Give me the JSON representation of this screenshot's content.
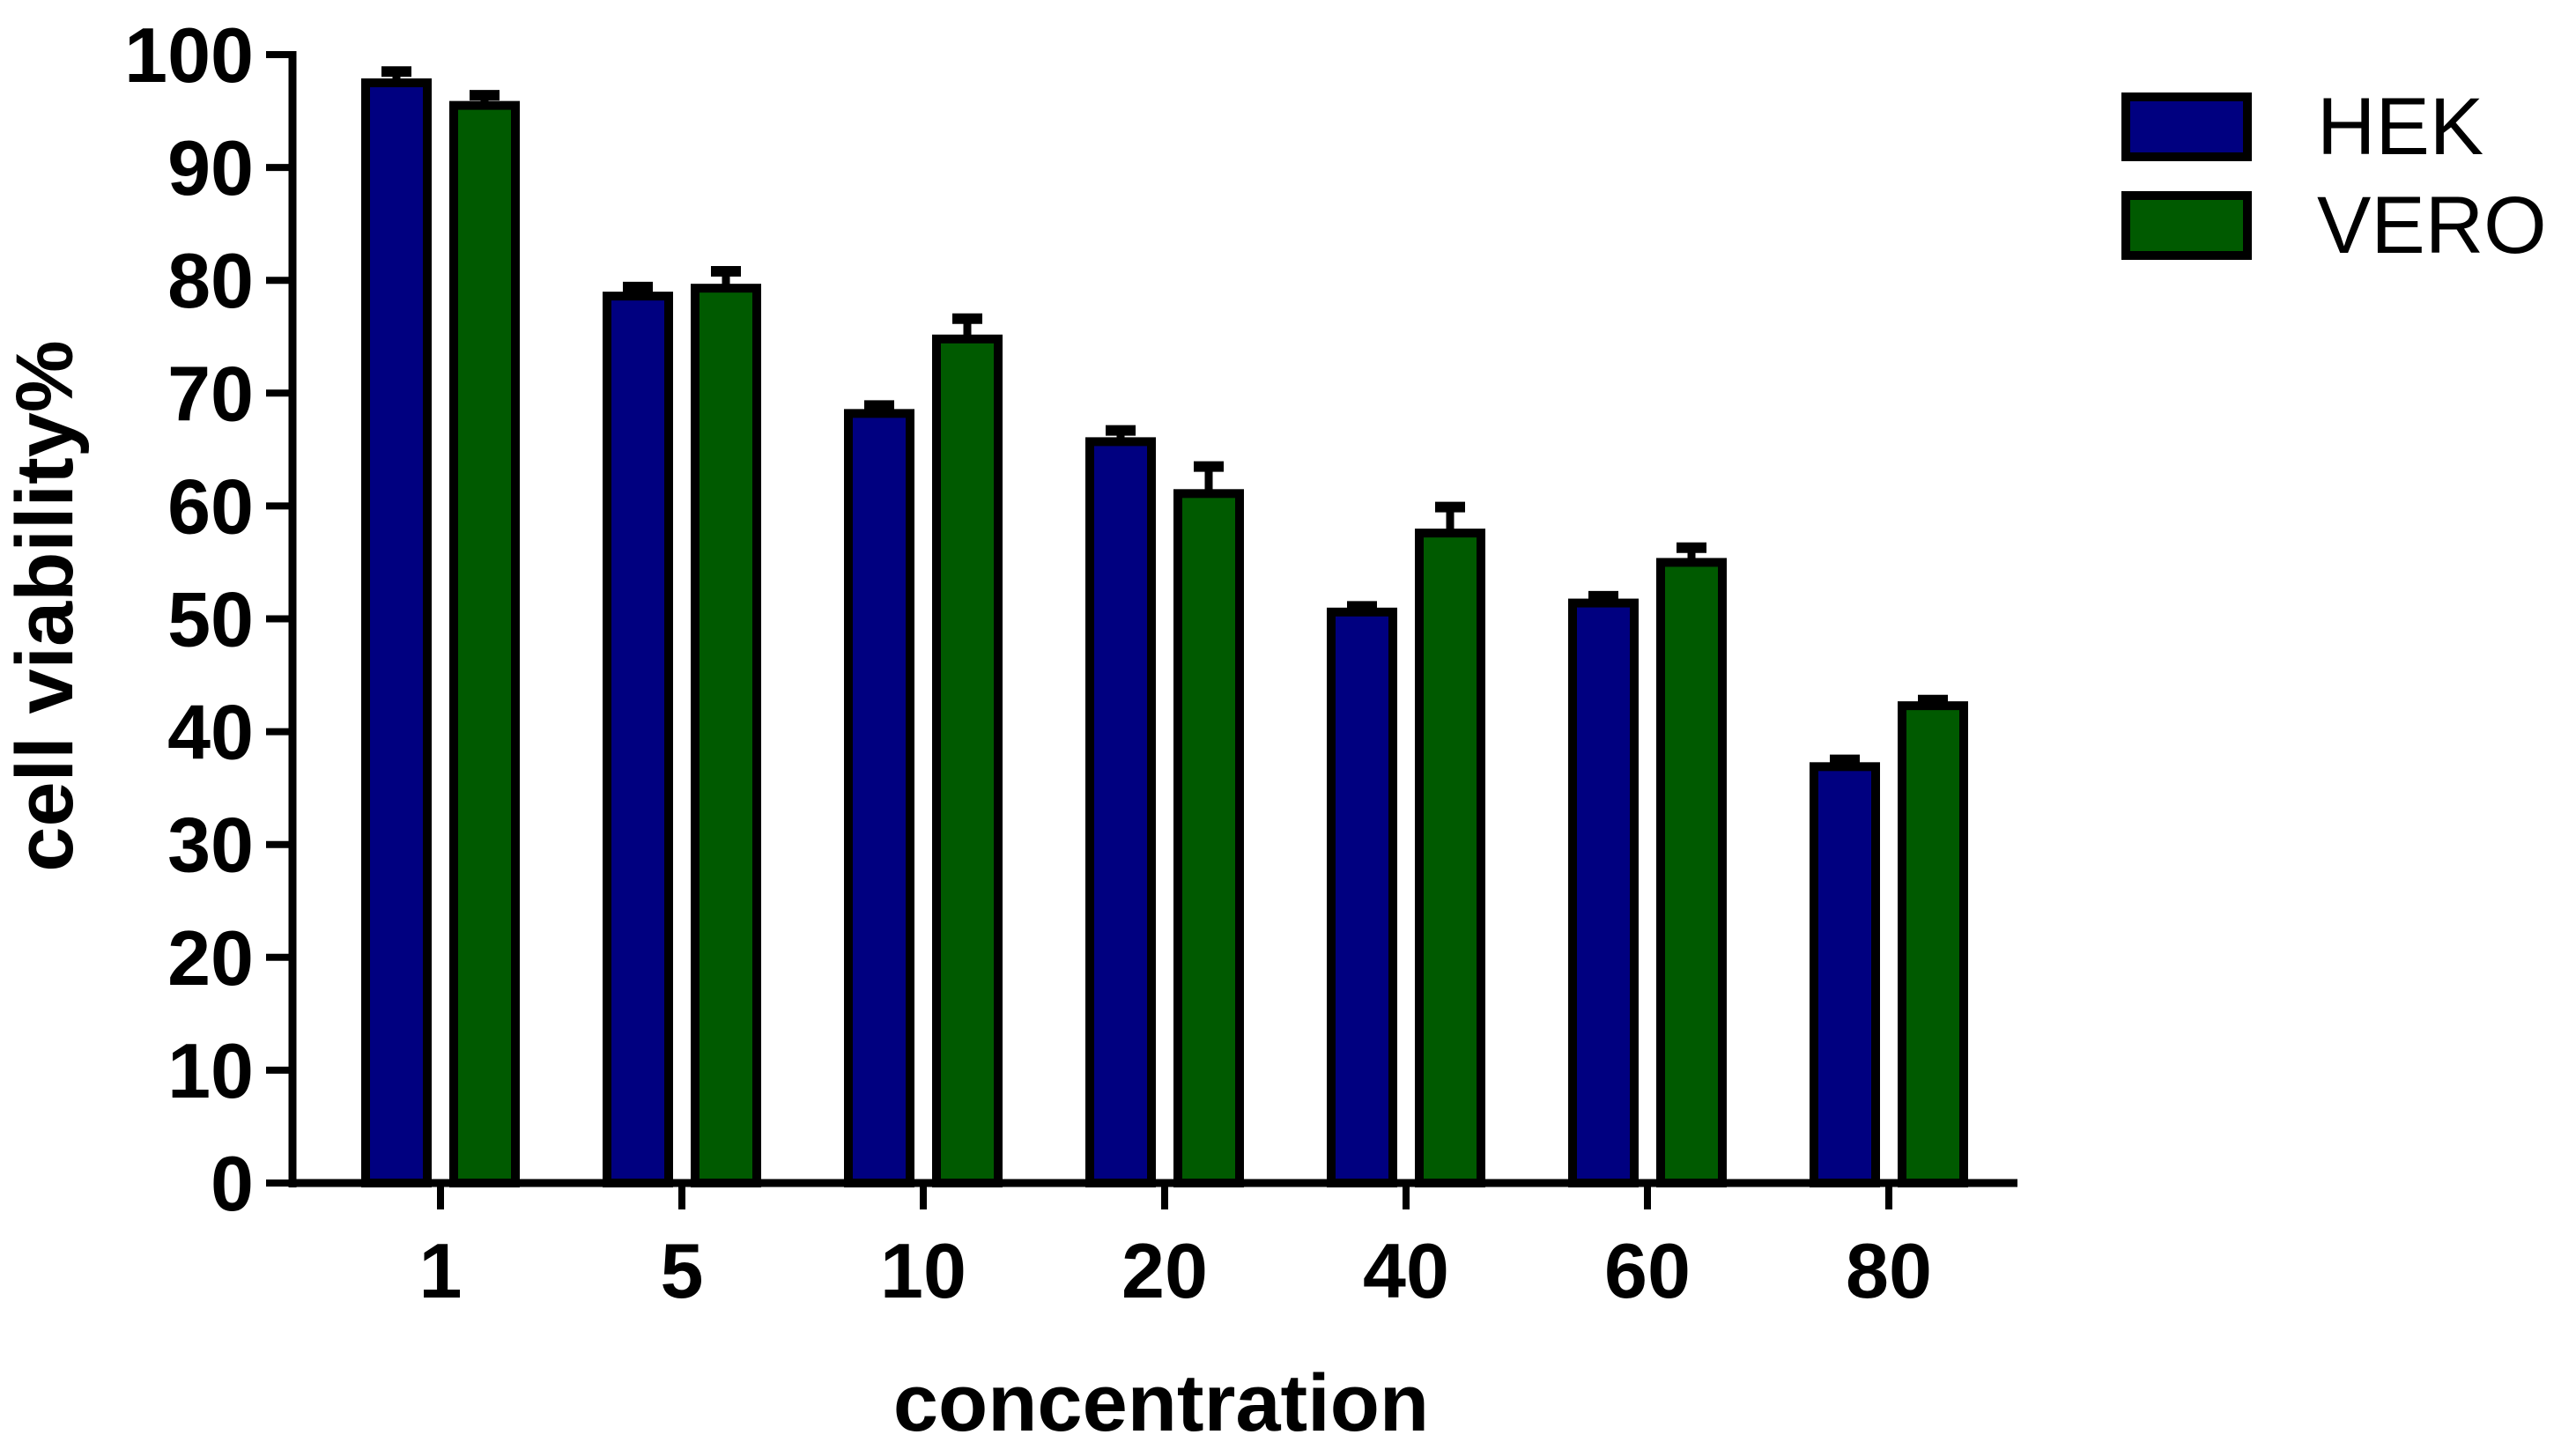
{
  "chart_data": {
    "type": "bar",
    "xlabel": "concentration",
    "ylabel": "cell viability%",
    "ylim": [
      0,
      100
    ],
    "yticks": [
      0,
      10,
      20,
      30,
      40,
      50,
      60,
      70,
      80,
      90,
      100
    ],
    "categories": [
      "1",
      "5",
      "10",
      "20",
      "40",
      "60",
      "80"
    ],
    "series": [
      {
        "name": "HEK",
        "color": "#000080",
        "values": [
          97.5,
          78.6,
          68.2,
          65.7,
          50.6,
          51.4,
          36.9
        ],
        "errors": [
          1.0,
          0.8,
          0.7,
          1.0,
          0.5,
          0.6,
          0.6
        ]
      },
      {
        "name": "VERO",
        "color": "#005a00",
        "values": [
          95.5,
          79.3,
          74.8,
          61.1,
          57.6,
          55.0,
          42.3
        ],
        "errors": [
          0.9,
          1.5,
          1.8,
          2.4,
          2.3,
          1.3,
          0.5
        ]
      }
    ],
    "legend": "top-right",
    "grid": false,
    "error_bars": "upper"
  }
}
